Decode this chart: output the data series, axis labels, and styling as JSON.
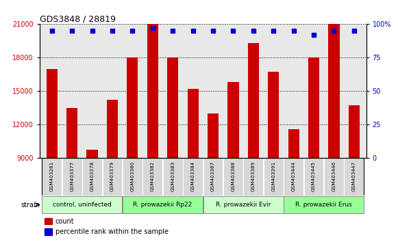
{
  "title": "GDS3848 / 28819",
  "samples": [
    "GSM403281",
    "GSM403377",
    "GSM403378",
    "GSM403379",
    "GSM403380",
    "GSM403382",
    "GSM403383",
    "GSM403384",
    "GSM403387",
    "GSM403388",
    "GSM403389",
    "GSM403391",
    "GSM403444",
    "GSM403445",
    "GSM403446",
    "GSM403447"
  ],
  "counts": [
    17000,
    13500,
    9700,
    14200,
    18000,
    21000,
    18000,
    15200,
    13000,
    15800,
    19300,
    16700,
    11600,
    18000,
    21000,
    13700
  ],
  "percentile_ranks": [
    95,
    95,
    95,
    95,
    95,
    97,
    95,
    95,
    95,
    95,
    95,
    95,
    95,
    92,
    95,
    95
  ],
  "bar_color": "#cc0000",
  "dot_color": "#0000cc",
  "ylim_left": [
    9000,
    21000
  ],
  "ylim_right": [
    0,
    100
  ],
  "yticks_left": [
    9000,
    12000,
    15000,
    18000,
    21000
  ],
  "yticks_right": [
    0,
    25,
    50,
    75,
    100
  ],
  "groups": [
    {
      "label": "control, uninfected",
      "start": 0,
      "end": 4,
      "color": "#ccffcc"
    },
    {
      "label": "R. prowazekii Rp22",
      "start": 4,
      "end": 8,
      "color": "#99ff99"
    },
    {
      "label": "R. prowazekii Evir",
      "start": 8,
      "end": 12,
      "color": "#ccffcc"
    },
    {
      "label": "R. prowazekii Erus",
      "start": 12,
      "end": 16,
      "color": "#99ff99"
    }
  ],
  "legend_items": [
    {
      "label": "count",
      "color": "#cc0000"
    },
    {
      "label": "percentile rank within the sample",
      "color": "#0000cc"
    }
  ],
  "strain_label": "strain",
  "grid_style": "dotted",
  "plot_bg": "#e8e8e8",
  "cell_bg": "#d0d0d0",
  "border_color": "#888888"
}
